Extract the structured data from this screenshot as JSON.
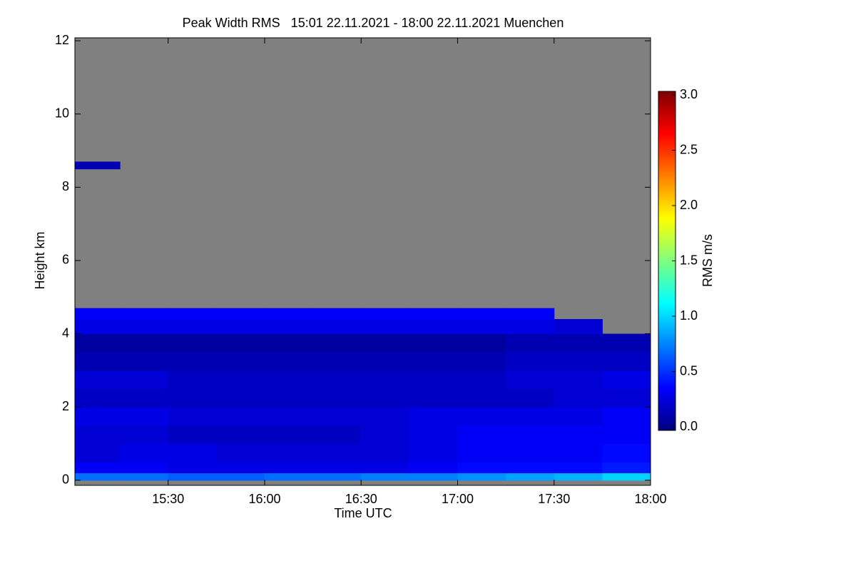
{
  "chart_data": {
    "type": "heatmap",
    "title": "Peak Width RMS   15:01 22.11.2021 - 18:00 22.11.2021 Muenchen",
    "x_label": "Time UTC",
    "y_label": "Height km",
    "colorbar_label": "RMS m/s",
    "xlim": [
      15.0167,
      18.0
    ],
    "ylim": [
      -0.14,
      12.08
    ],
    "xticks": [
      {
        "value": 15.5,
        "label": "15:30"
      },
      {
        "value": 16.0,
        "label": "16:00"
      },
      {
        "value": 16.5,
        "label": "16:30"
      },
      {
        "value": 17.0,
        "label": "17:00"
      },
      {
        "value": 17.5,
        "label": "17:30"
      },
      {
        "value": 18.0,
        "label": "18:00"
      }
    ],
    "yticks": [
      0,
      2,
      4,
      6,
      8,
      10,
      12
    ],
    "clim": [
      0,
      3
    ],
    "cticks": [
      {
        "value": 0,
        "label": "0.0"
      },
      {
        "value": 0.5,
        "label": "0.5"
      },
      {
        "value": 1,
        "label": "1.0"
      },
      {
        "value": 1.5,
        "label": "1.5"
      },
      {
        "value": 2,
        "label": "2.0"
      },
      {
        "value": 2.5,
        "label": "2.5"
      },
      {
        "value": 3,
        "label": "3.0"
      }
    ],
    "colormap": [
      "#00007f",
      "#0000ff",
      "#007fff",
      "#00ffff",
      "#7fff7f",
      "#ffff00",
      "#ff7f00",
      "#ff0000",
      "#7f0000"
    ],
    "null_color": "#808080",
    "x_edges": [
      15.0167,
      15.25,
      15.5,
      15.75,
      16.0,
      16.25,
      16.5,
      16.75,
      17.0,
      17.25,
      17.5,
      17.75,
      18.0
    ],
    "y_edges": [
      0,
      0.2,
      0.5,
      1,
      1.5,
      2,
      2.5,
      3,
      3.5,
      4,
      4.4,
      4.7,
      8.5,
      8.7
    ],
    "z": [
      [
        0.7,
        0.7,
        0.65,
        0.65,
        0.7,
        0.7,
        0.75,
        0.75,
        0.8,
        0.85,
        0.9,
        1.0
      ],
      [
        0.35,
        0.35,
        0.3,
        0.3,
        0.3,
        0.3,
        0.3,
        0.35,
        0.4,
        0.4,
        0.4,
        0.45
      ],
      [
        0.25,
        0.3,
        0.3,
        0.25,
        0.25,
        0.25,
        0.25,
        0.3,
        0.35,
        0.35,
        0.35,
        0.4
      ],
      [
        0.25,
        0.25,
        0.2,
        0.2,
        0.2,
        0.2,
        0.25,
        0.3,
        0.35,
        0.35,
        0.35,
        0.35
      ],
      [
        0.3,
        0.3,
        0.25,
        0.25,
        0.25,
        0.25,
        0.25,
        0.3,
        0.3,
        0.3,
        0.3,
        0.35
      ],
      [
        0.2,
        0.2,
        0.2,
        0.2,
        0.2,
        0.2,
        0.2,
        0.2,
        0.2,
        0.2,
        0.25,
        0.25
      ],
      [
        0.25,
        0.25,
        0.2,
        0.2,
        0.2,
        0.2,
        0.2,
        0.2,
        0.2,
        0.25,
        0.25,
        0.3
      ],
      [
        0.15,
        0.15,
        0.15,
        0.15,
        0.15,
        0.15,
        0.15,
        0.15,
        0.15,
        0.2,
        0.2,
        0.2
      ],
      [
        0.1,
        0.1,
        0.1,
        0.1,
        0.1,
        0.1,
        0.1,
        0.1,
        0.1,
        0.15,
        0.15,
        0.15
      ],
      [
        0.3,
        0.3,
        0.3,
        0.3,
        0.3,
        0.3,
        0.3,
        0.3,
        0.3,
        0.3,
        0.25,
        null
      ],
      [
        0.35,
        0.35,
        0.35,
        0.35,
        0.35,
        0.35,
        0.35,
        0.35,
        0.35,
        0.35,
        null,
        null
      ],
      [
        null,
        null,
        null,
        null,
        null,
        null,
        null,
        null,
        null,
        null,
        null,
        null
      ],
      [
        0.15,
        null,
        null,
        null,
        null,
        null,
        null,
        null,
        null,
        null,
        null,
        null
      ]
    ]
  }
}
